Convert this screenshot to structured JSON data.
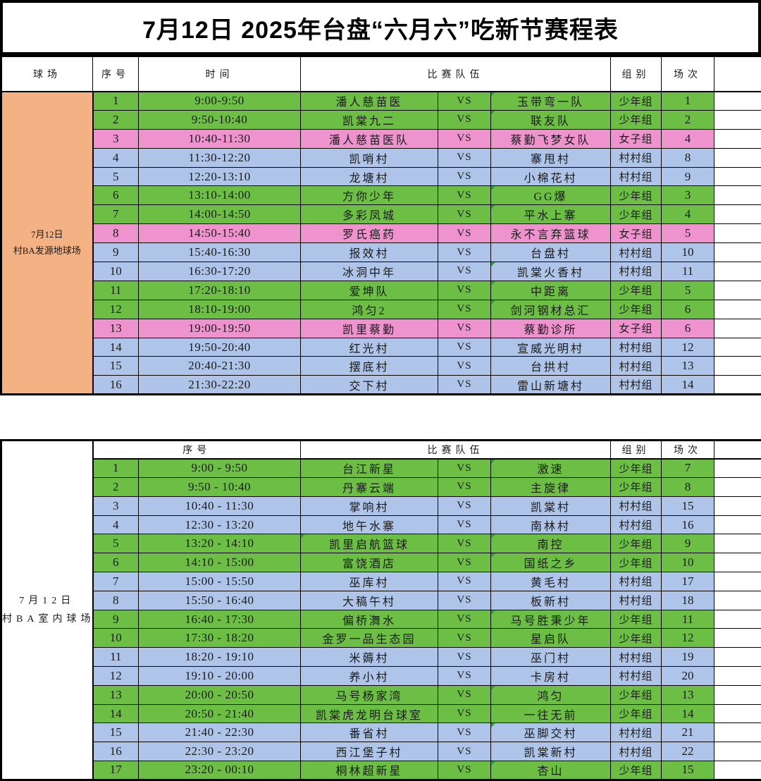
{
  "page": {
    "title": "7月12日 2025年台盘“六月六”吃新节赛程表"
  },
  "vs_label": "VS",
  "colors": {
    "green": "#6CBE45",
    "blue": "#AEC4E8",
    "pink": "#EE93CE",
    "orange": "#F4B183",
    "border": "#000000"
  },
  "group_colors": {
    "少年组": "green",
    "村村组": "blue",
    "女子组": "pink"
  },
  "headers": {
    "court": "球场",
    "no": "序号",
    "time": "时间",
    "teams": "比赛队伍",
    "group": "组别",
    "session": "场次"
  },
  "tables": [
    {
      "venue": {
        "date": "7月12日",
        "name": "村BA发源地球场"
      },
      "header_style": "full",
      "rows": [
        {
          "no": "1",
          "time": "9:00-9:50",
          "team_a": "潘人慈苗医",
          "team_b": "玉带弯一队",
          "group": "少年组",
          "session": "1",
          "tri": "b"
        },
        {
          "no": "2",
          "time": "9:50-10:40",
          "team_a": "凯棠九二",
          "team_b": "联友队",
          "group": "少年组",
          "session": "2",
          "tri": "b"
        },
        {
          "no": "3",
          "time": "10:40-11:30",
          "team_a": "潘人慈苗医队",
          "team_b": "蔡勤飞梦女队",
          "group": "女子组",
          "session": "4",
          "tri": ""
        },
        {
          "no": "4",
          "time": "11:30-12:20",
          "team_a": "凯哨村",
          "team_b": "寨甩村",
          "group": "村村组",
          "session": "8",
          "tri": ""
        },
        {
          "no": "5",
          "time": "12:20-13:10",
          "team_a": "龙塘村",
          "team_b": "小棉花村",
          "group": "村村组",
          "session": "9",
          "tri": ""
        },
        {
          "no": "6",
          "time": "13:10-14:00",
          "team_a": "方你少年",
          "team_b": "GG爆",
          "group": "少年组",
          "session": "3",
          "tri": "b"
        },
        {
          "no": "7",
          "time": "14:00-14:50",
          "team_a": "多彩凤城",
          "team_b": "平水上寨",
          "group": "少年组",
          "session": "4",
          "tri": "b"
        },
        {
          "no": "8",
          "time": "14:50-15:40",
          "team_a": "罗氏癌药",
          "team_b": "永不言弃篮球",
          "group": "女子组",
          "session": "5",
          "tri": ""
        },
        {
          "no": "9",
          "time": "15:40-16:30",
          "team_a": "报效村",
          "team_b": "台盘村",
          "group": "村村组",
          "session": "10",
          "tri": ""
        },
        {
          "no": "10",
          "time": "16:30-17:20",
          "team_a": "冰洞中年",
          "team_b": "凯棠火香村",
          "group": "村村组",
          "session": "11",
          "tri": "b"
        },
        {
          "no": "11",
          "time": "17:20-18:10",
          "team_a": "爱坤队",
          "team_b": "中距离",
          "group": "少年组",
          "session": "5",
          "tri": "b"
        },
        {
          "no": "12",
          "time": "18:10-19:00",
          "team_a": "鸿匀2",
          "team_b": "剑河钢材总汇",
          "group": "少年组",
          "session": "6",
          "tri": "b"
        },
        {
          "no": "13",
          "time": "19:00-19:50",
          "team_a": "凯里蔡勤",
          "team_b": "蔡勤诊所",
          "group": "女子组",
          "session": "6",
          "tri": ""
        },
        {
          "no": "14",
          "time": "19:50-20:40",
          "team_a": "红光村",
          "team_b": "宣威光明村",
          "group": "村村组",
          "session": "12",
          "tri": ""
        },
        {
          "no": "15",
          "time": "20:40-21:30",
          "team_a": "摆底村",
          "team_b": "台拱村",
          "group": "村村组",
          "session": "13",
          "tri": ""
        },
        {
          "no": "16",
          "time": "21:30-22:20",
          "team_a": "交下村",
          "team_b": "雷山新塘村",
          "group": "村村组",
          "session": "14",
          "tri": ""
        }
      ]
    },
    {
      "venue": {
        "date": "7月12日",
        "name": "村BA室内球场"
      },
      "header_style": "merged",
      "rows": [
        {
          "no": "1",
          "time": "9:00 - 9:50",
          "team_a": "台江新星",
          "team_b": "激速",
          "group": "少年组",
          "session": "7",
          "tri": "b"
        },
        {
          "no": "2",
          "time": "9:50 - 10:40",
          "team_a": "丹寨云端",
          "team_b": "主旋律",
          "group": "少年组",
          "session": "8",
          "tri": ""
        },
        {
          "no": "3",
          "time": "10:40 - 11:30",
          "team_a": "掌响村",
          "team_b": "凯棠村",
          "group": "村村组",
          "session": "15",
          "tri": ""
        },
        {
          "no": "4",
          "time": "12:30 - 13:20",
          "team_a": "地午水寨",
          "team_b": "南林村",
          "group": "村村组",
          "session": "16",
          "tri": ""
        },
        {
          "no": "5",
          "time": "13:20 - 14:10",
          "team_a": "凯里启航篮球",
          "team_b": "南控",
          "group": "少年组",
          "session": "9",
          "tri": "ab"
        },
        {
          "no": "6",
          "time": "14:10 - 15:00",
          "team_a": "富饶酒店",
          "team_b": "国纸之乡",
          "group": "少年组",
          "session": "10",
          "tri": "b"
        },
        {
          "no": "7",
          "time": "15:00 - 15:50",
          "team_a": "巫库村",
          "team_b": "黄毛村",
          "group": "村村组",
          "session": "17",
          "tri": ""
        },
        {
          "no": "8",
          "time": "15:50 - 16:40",
          "team_a": "大稿午村",
          "team_b": "板新村",
          "group": "村村组",
          "session": "18",
          "tri": ""
        },
        {
          "no": "9",
          "time": "16:40 - 17:30",
          "team_a": "偏桥㵲水",
          "team_b": "马号胜秉少年",
          "group": "少年组",
          "session": "11",
          "tri": "b"
        },
        {
          "no": "10",
          "time": "17:30 - 18:20",
          "team_a": "金罗一品生态园",
          "team_b": "星启队",
          "group": "少年组",
          "session": "12",
          "tri": ""
        },
        {
          "no": "11",
          "time": "18:20 - 19:10",
          "team_a": "米薅村",
          "team_b": "巫门村",
          "group": "村村组",
          "session": "19",
          "tri": ""
        },
        {
          "no": "12",
          "time": "19:10 - 20:00",
          "team_a": "养小村",
          "team_b": "卡房村",
          "group": "村村组",
          "session": "20",
          "tri": ""
        },
        {
          "no": "13",
          "time": "20:00 - 20:50",
          "team_a": "马号杨家湾",
          "team_b": "鸿匀",
          "group": "少年组",
          "session": "13",
          "tri": "b"
        },
        {
          "no": "14",
          "time": "20:50 - 21:40",
          "team_a": "凯棠虎龙明台球室",
          "team_b": "一往无前",
          "group": "少年组",
          "session": "14",
          "tri": ""
        },
        {
          "no": "15",
          "time": "21:40 - 22:30",
          "team_a": "番省村",
          "team_b": "巫脚交村",
          "group": "村村组",
          "session": "21",
          "tri": "b"
        },
        {
          "no": "16",
          "time": "22:30 - 23:20",
          "team_a": "西江堡子村",
          "team_b": "凯棠新村",
          "group": "村村组",
          "session": "22",
          "tri": ""
        },
        {
          "no": "17",
          "time": "23:20 - 00:10",
          "team_a": "桐林超新星",
          "team_b": "杏山",
          "group": "少年组",
          "session": "15",
          "tri": "b"
        }
      ]
    }
  ]
}
